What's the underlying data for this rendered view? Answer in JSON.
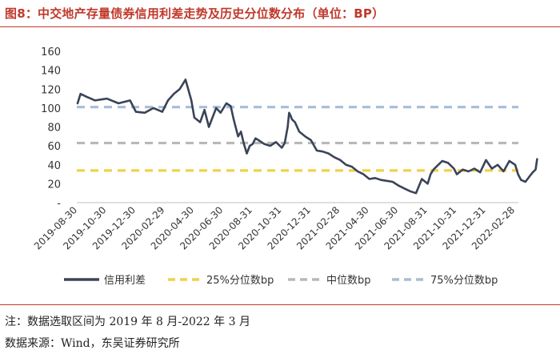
{
  "header": {
    "title": "图8：中交地产存量债券信用利差走势及历史分位数分布（单位：BP）"
  },
  "chart_data": {
    "type": "line",
    "title": "中交地产存量债券信用利差走势及历史分位数分布（单位：BP）",
    "ylim": [
      0,
      160
    ],
    "yticks": [
      "-",
      "20",
      "40",
      "60",
      "80",
      "100",
      "120",
      "140",
      "160"
    ],
    "xticks": [
      "2019-08-30",
      "2019-10-30",
      "2019-12-30",
      "2020-02-29",
      "2020-04-30",
      "2020-06-30",
      "2020-08-31",
      "2020-10-31",
      "2020-12-31",
      "2021-02-28",
      "2021-04-30",
      "2021-06-30",
      "2021-08-31",
      "2021-10-31",
      "2021-12-31",
      "2022-02-28"
    ],
    "series": [
      {
        "name": "信用利差",
        "color": "#3a4458",
        "style": "solid",
        "x": [
          0.0,
          0.1,
          0.3,
          0.6,
          1.0,
          1.4,
          1.8,
          2.0,
          2.3,
          2.6,
          2.9,
          3.1,
          3.3,
          3.5,
          3.7,
          3.9,
          4.0,
          4.2,
          4.35,
          4.5,
          4.6,
          4.75,
          4.9,
          5.1,
          5.25,
          5.35,
          5.5,
          5.6,
          5.7,
          5.8,
          5.9,
          6.0,
          6.1,
          6.2,
          6.4,
          6.6,
          6.8,
          7.0,
          7.1,
          7.2,
          7.25,
          7.3,
          7.35,
          7.45,
          7.6,
          7.8,
          8.0,
          8.2,
          8.4,
          8.6,
          8.8,
          9.0,
          9.2,
          9.4,
          9.6,
          9.8,
          10.0,
          10.2,
          10.4,
          10.6,
          10.8,
          11.0,
          11.2,
          11.4,
          11.6,
          11.8,
          12.0,
          12.1,
          12.2,
          12.3,
          12.5,
          12.7,
          12.9,
          13.0,
          13.2,
          13.4,
          13.6,
          13.8,
          14.0,
          14.2,
          14.4,
          14.6,
          14.8,
          15.0,
          15.1,
          15.2,
          15.35,
          15.5,
          15.6,
          15.7,
          15.75
        ],
        "values": [
          105,
          115,
          112,
          108,
          110,
          105,
          108,
          96,
          95,
          100,
          96,
          108,
          115,
          120,
          130,
          108,
          90,
          85,
          98,
          80,
          88,
          100,
          95,
          105,
          102,
          88,
          70,
          75,
          62,
          52,
          60,
          62,
          68,
          66,
          62,
          60,
          64,
          58,
          63,
          80,
          95,
          92,
          88,
          85,
          75,
          70,
          66,
          55,
          54,
          52,
          48,
          45,
          40,
          38,
          33,
          30,
          25,
          26,
          24,
          23,
          22,
          18,
          15,
          12,
          10,
          25,
          20,
          30,
          35,
          38,
          44,
          42,
          36,
          30,
          35,
          33,
          36,
          32,
          45,
          36,
          40,
          33,
          44,
          40,
          30,
          24,
          22,
          28,
          32,
          35,
          46
        ]
      },
      {
        "name": "25%分位数bp",
        "color": "#f2d04a",
        "style": "dashed",
        "values": [
          34
        ]
      },
      {
        "name": "中位数bp",
        "color": "#b8b8b8",
        "style": "dashed",
        "values": [
          63
        ]
      },
      {
        "name": "75%分位数bp",
        "color": "#a7bdd6",
        "style": "dashed",
        "values": [
          101
        ]
      }
    ]
  },
  "legend": {
    "s1": "信用利差",
    "s2": "25%分位数bp",
    "s3": "中位数bp",
    "s4": "75%分位数bp"
  },
  "footnotes": {
    "note": "注：数据选取区间为 2019 年 8 月-2022 年 3 月",
    "source": "数据来源：Wind，东吴证券研究所"
  }
}
